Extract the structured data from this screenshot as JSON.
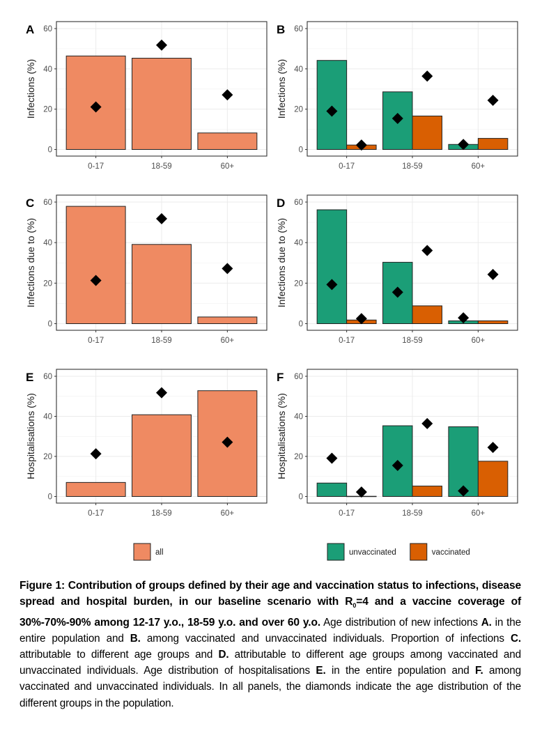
{
  "chart_data": [
    {
      "panel": "A",
      "type": "bar",
      "ylabel": "Infections (%)",
      "ylim": [
        0,
        60
      ],
      "yticks": [
        0,
        20,
        40,
        60
      ],
      "categories": [
        "0-17",
        "18-59",
        "60+"
      ],
      "series": [
        {
          "name": "all",
          "values": [
            46.4,
            45.3,
            8.2
          ]
        }
      ],
      "population": [
        {
          "series": "all",
          "values": [
            21.1,
            51.8,
            27.1
          ]
        }
      ],
      "grid": true
    },
    {
      "panel": "B",
      "type": "bar",
      "ylabel": "Infections (%)",
      "ylim": [
        0,
        60
      ],
      "yticks": [
        0,
        20,
        40,
        60
      ],
      "categories": [
        "0-17",
        "18-59",
        "60+"
      ],
      "series": [
        {
          "name": "unvaccinated",
          "values": [
            44.2,
            28.6,
            2.5
          ]
        },
        {
          "name": "vaccinated",
          "values": [
            2.2,
            16.6,
            5.5
          ]
        }
      ],
      "population": [
        {
          "series": "unvaccinated",
          "values": [
            19.0,
            15.4,
            2.5
          ]
        },
        {
          "series": "vaccinated",
          "values": [
            2.2,
            36.4,
            24.4
          ]
        }
      ],
      "grid": true
    },
    {
      "panel": "C",
      "type": "bar",
      "ylabel": "Infections due to (%)",
      "ylim": [
        0,
        60
      ],
      "yticks": [
        0,
        20,
        40,
        60
      ],
      "categories": [
        "0-17",
        "18-59",
        "60+"
      ],
      "series": [
        {
          "name": "all",
          "values": [
            57.9,
            39.1,
            3.3
          ]
        }
      ],
      "population": [
        {
          "series": "all",
          "values": [
            21.3,
            51.8,
            27.2
          ]
        }
      ],
      "grid": true
    },
    {
      "panel": "D",
      "type": "bar",
      "ylabel": "Infections due to (%)",
      "ylim": [
        0,
        60
      ],
      "yticks": [
        0,
        20,
        40,
        60
      ],
      "categories": [
        "0-17",
        "18-59",
        "60+"
      ],
      "series": [
        {
          "name": "unvaccinated",
          "values": [
            56.2,
            30.3,
            1.4
          ]
        },
        {
          "name": "vaccinated",
          "values": [
            1.8,
            8.8,
            1.4
          ]
        }
      ],
      "population": [
        {
          "series": "unvaccinated",
          "values": [
            19.3,
            15.5,
            2.9
          ]
        },
        {
          "series": "vaccinated",
          "values": [
            2.5,
            36.1,
            24.3
          ]
        }
      ],
      "grid": true
    },
    {
      "panel": "E",
      "type": "bar",
      "ylabel": "Hospitalisations (%)",
      "ylim": [
        0,
        60
      ],
      "yticks": [
        0,
        20,
        40,
        60
      ],
      "categories": [
        "0-17",
        "18-59",
        "60+"
      ],
      "series": [
        {
          "name": "all",
          "values": [
            7.0,
            40.8,
            52.8
          ]
        }
      ],
      "population": [
        {
          "series": "all",
          "values": [
            21.3,
            51.8,
            27.1
          ]
        }
      ],
      "grid": true
    },
    {
      "panel": "F",
      "type": "bar",
      "ylabel": "Hospitalisations (%)",
      "ylim": [
        0,
        60
      ],
      "yticks": [
        0,
        20,
        40,
        60
      ],
      "categories": [
        "0-17",
        "18-59",
        "60+"
      ],
      "series": [
        {
          "name": "unvaccinated",
          "values": [
            6.7,
            35.3,
            34.8
          ]
        },
        {
          "name": "vaccinated",
          "values": [
            0.1,
            5.2,
            17.6
          ]
        }
      ],
      "population": [
        {
          "series": "unvaccinated",
          "values": [
            19.1,
            15.5,
            2.8
          ]
        },
        {
          "series": "vaccinated",
          "values": [
            2.2,
            36.4,
            24.5
          ]
        }
      ],
      "grid": true
    }
  ],
  "colors": {
    "all": "#ef8a62",
    "unvaccinated": "#1b9e77",
    "vaccinated": "#d95f02",
    "diamond": "#000000"
  },
  "legends": {
    "left": [
      {
        "label": "all",
        "color_key": "all"
      }
    ],
    "right": [
      {
        "label": "unvaccinated",
        "color_key": "unvaccinated"
      },
      {
        "label": "vaccinated",
        "color_key": "vaccinated"
      }
    ],
    "placement": "bottom"
  },
  "caption": {
    "title_part1": "Figure 1: Contribution of groups defined by their age and vaccination status to infections, disease spread and hospital burden, in our baseline scenario with R",
    "title_sub": "0",
    "title_part2": "=4 and a vaccine coverage of 30%-70%-90% among 12-17 y.o., 18-59 y.o. and over 60 y.o.",
    "t1": " Age distribution of new infections ",
    "A": "A.",
    "t2": " in the entire population and  ",
    "B": "B.",
    "t3": " among vaccinated and unvaccinated individuals. Proportion of infections ",
    "C": "C.",
    "t4": " attributable to different age groups and ",
    "D": "D.",
    "t5": " attributable to different age groups among vaccinated and unvaccinated individuals. Age distribution of hospitalisations ",
    "E": "E.",
    "t6": " in the entire population and  ",
    "F": "F.",
    "t7": " among vaccinated and unvaccinated individuals. In all panels, the diamonds indicate the age distribution of the different groups in the population."
  }
}
